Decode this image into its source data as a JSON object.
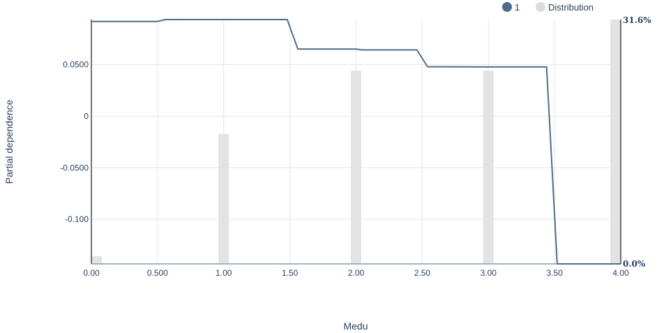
{
  "chart_data": {
    "type": "line",
    "xlabel": "Medu",
    "ylabel": "Partial dependence",
    "xlim": [
      0.0,
      4.0
    ],
    "ylim": [
      -0.1433,
      0.0938
    ],
    "x_ticks": [
      {
        "value": 0.0,
        "label": "0.00"
      },
      {
        "value": 0.5,
        "label": "0.500"
      },
      {
        "value": 1.0,
        "label": "1.00"
      },
      {
        "value": 1.5,
        "label": "1.50"
      },
      {
        "value": 2.0,
        "label": "2.00"
      },
      {
        "value": 2.5,
        "label": "2.50"
      },
      {
        "value": 3.0,
        "label": "3.00"
      },
      {
        "value": 3.5,
        "label": "3.50"
      },
      {
        "value": 4.0,
        "label": "4.00"
      }
    ],
    "y_ticks": [
      {
        "value": 0.05,
        "label": "0.0500"
      },
      {
        "value": 0.0,
        "label": "0"
      },
      {
        "value": -0.05,
        "label": "-0.0500"
      },
      {
        "value": -0.1,
        "label": "-0.100"
      }
    ],
    "grid": true,
    "legend_placement": "top-right",
    "series": [
      {
        "name": "1",
        "color": "#4f6d8a",
        "x": [
          0.0,
          0.5,
          0.56,
          1.48,
          1.56,
          2.0,
          2.04,
          2.46,
          2.54,
          3.0,
          3.04,
          3.44,
          3.52,
          4.0
        ],
        "y": [
          0.092,
          0.092,
          0.0938,
          0.0938,
          0.0652,
          0.0652,
          0.0643,
          0.0643,
          0.048,
          0.0478,
          0.0478,
          0.0478,
          -0.1433,
          -0.1433
        ]
      }
    ],
    "distribution": {
      "name": "Distribution",
      "color": "#e3e3e3",
      "y2_range": [
        0.0,
        31.6
      ],
      "y2_labels": {
        "top": "31.6%",
        "bottom": "0.0%"
      },
      "x": [
        0.0,
        1.0,
        2.0,
        3.0,
        4.0
      ],
      "values": [
        1.0,
        16.8,
        25.0,
        25.0,
        31.6
      ]
    }
  }
}
